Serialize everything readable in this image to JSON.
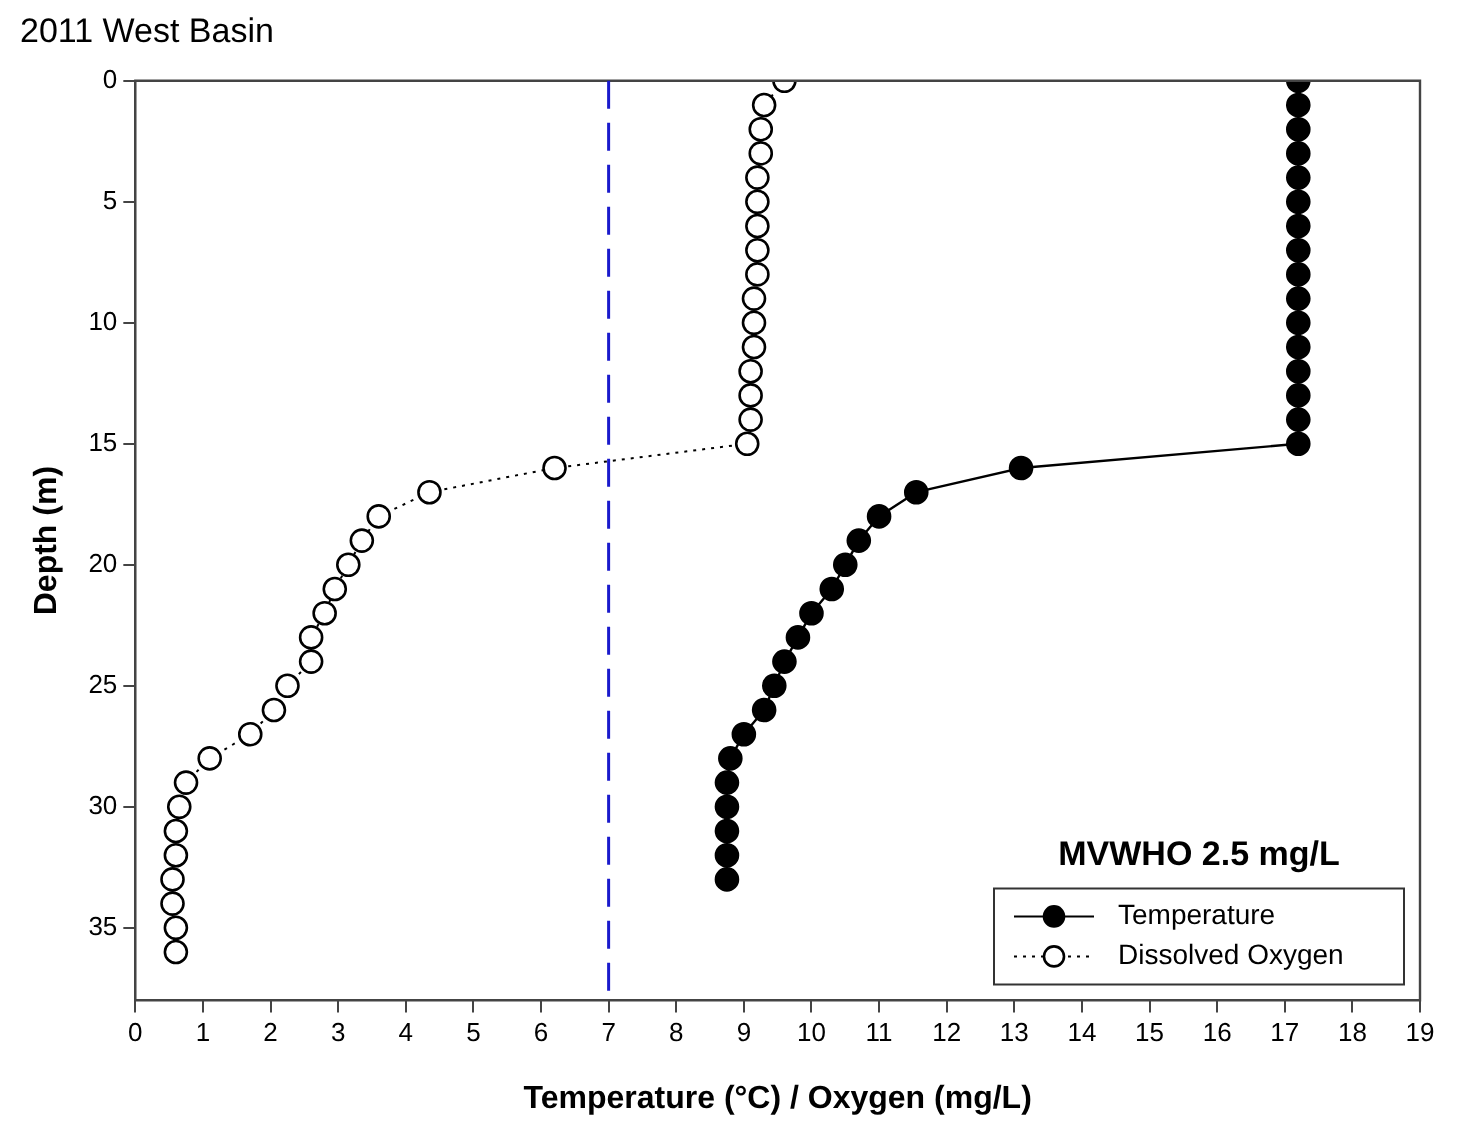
{
  "chart_data": {
    "type": "line",
    "title": "2011 West Basin",
    "xlabel": "Temperature (°C) / Oxygen (mg/L)",
    "ylabel": "Depth (m)",
    "legend_title": "MVWHO 2.5 mg/L",
    "xlim": [
      0,
      19
    ],
    "xticks": [
      0,
      1,
      2,
      3,
      4,
      5,
      6,
      7,
      8,
      9,
      10,
      11,
      12,
      13,
      14,
      15,
      16,
      17,
      18,
      19
    ],
    "ylim": [
      38,
      0
    ],
    "yticks": [
      0,
      5,
      10,
      15,
      20,
      25,
      30,
      35
    ],
    "grid": false,
    "legend": "bottom right",
    "marker": "circle",
    "ref_lines": [
      {
        "axis": "x",
        "value": 7,
        "color": "#1a1acc",
        "line_style": "dashed"
      }
    ],
    "series": [
      {
        "name": "Temperature",
        "color": "#000000",
        "line_style": "solid",
        "x": [
          17.2,
          17.2,
          17.2,
          17.2,
          17.2,
          17.2,
          17.2,
          17.2,
          17.2,
          17.2,
          17.2,
          17.2,
          17.2,
          17.2,
          17.2,
          17.2,
          13.1,
          11.55,
          11.0,
          10.7,
          10.5,
          10.3,
          10.0,
          9.8,
          9.6,
          9.45,
          9.3,
          9.0,
          8.8,
          8.75,
          8.75,
          8.75,
          8.75,
          8.75
        ],
        "values": [
          0,
          1,
          2,
          3,
          4,
          5,
          6,
          7,
          8,
          9,
          10,
          11,
          12,
          13,
          14,
          15,
          16,
          17,
          18,
          19,
          20,
          21,
          22,
          23,
          24,
          25,
          26,
          27,
          28,
          29,
          30,
          31,
          32,
          33
        ]
      },
      {
        "name": "Dissolved Oxygen",
        "color": "#000000",
        "line_style": "dotted",
        "x": [
          9.6,
          9.3,
          9.25,
          9.25,
          9.2,
          9.2,
          9.2,
          9.2,
          9.2,
          9.15,
          9.15,
          9.15,
          9.1,
          9.1,
          9.1,
          9.05,
          6.2,
          4.35,
          3.6,
          3.35,
          3.15,
          2.95,
          2.8,
          2.6,
          2.6,
          2.25,
          2.05,
          1.7,
          1.1,
          0.75,
          0.65,
          0.6,
          0.6,
          0.55,
          0.55,
          0.6,
          0.6
        ],
        "values": [
          0,
          1,
          2,
          3,
          4,
          5,
          6,
          7,
          8,
          9,
          10,
          11,
          12,
          13,
          14,
          15,
          16,
          17,
          18,
          19,
          20,
          21,
          22,
          23,
          24,
          25,
          26,
          27,
          28,
          29,
          30,
          31,
          32,
          33,
          34,
          35,
          36
        ]
      }
    ]
  }
}
